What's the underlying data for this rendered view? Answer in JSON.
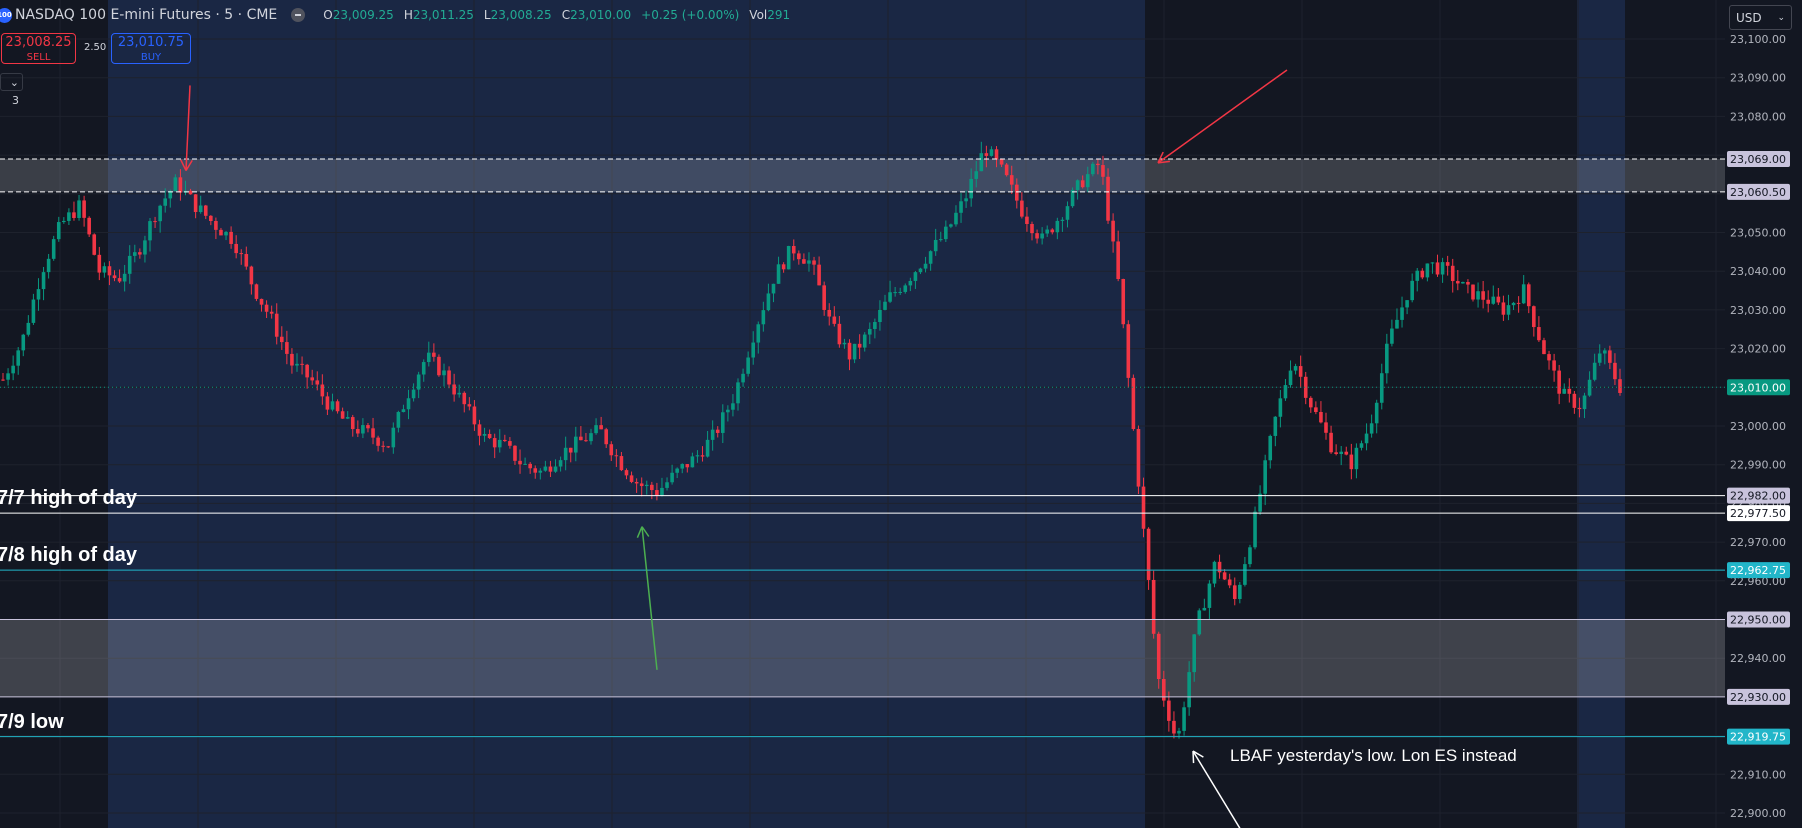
{
  "header": {
    "symbol_icon": "100",
    "title": "NASDAQ 100 E-mini Futures · 5 · CME",
    "ohlc": [
      {
        "k": "O",
        "v": "23,009.25"
      },
      {
        "k": "H",
        "v": "23,011.25"
      },
      {
        "k": "L",
        "v": "23,008.25"
      },
      {
        "k": "C",
        "v": "23,010.00"
      }
    ],
    "change": "+0.25 (+0.00%)",
    "vol_label": "Vol",
    "vol_value": "291"
  },
  "trade": {
    "sell_price": "23,008.25",
    "sell_label": "SELL",
    "spread": "2.50",
    "buy_price": "23,010.75",
    "buy_label": "BUY"
  },
  "indicators_toggle": "⌄ 3",
  "currency": "USD",
  "annotations": {
    "hod_77": "7/7 high of day",
    "hod_78": "7/8 high of day",
    "low_79": "7/9 low",
    "lbaf": "LBAF yesterday's low. Lon ES instead"
  },
  "chart_data": {
    "type": "candlestick",
    "price_axis_ticks": [
      23100,
      23090,
      23080,
      23070,
      23060,
      23050,
      23040,
      23030,
      23020,
      23010,
      23000,
      22990,
      22980,
      22970,
      22960,
      22950,
      22940,
      22930,
      22920,
      22910,
      22900
    ],
    "price_axis_labels": [
      "23,100.00",
      "23,090.00",
      "23,080.00",
      "23,070.00",
      "23,060.00",
      "23,050.00",
      "23,040.00",
      "23,030.00",
      "23,020.00",
      "23,010.00",
      "23,000.00",
      "22,990.00",
      "22,980.00",
      "22,970.00",
      "22,960.00",
      "22,950.00",
      "22,940.00",
      "22,930.00",
      "22,920.00",
      "22,910.00",
      "22,900.00"
    ],
    "ylim": [
      22896.5,
      23106.5
    ],
    "last_price": {
      "value": 23010.0,
      "label": "23,010.00",
      "color": "#089981"
    },
    "levels": [
      {
        "value": 23069.0,
        "label": "23,069.00",
        "style": "dashed",
        "color": "#ffffff",
        "badge": "#c8c3dc"
      },
      {
        "value": 23060.5,
        "label": "23,060.50",
        "style": "dashed",
        "color": "#ffffff",
        "badge": "#c8c3dc"
      },
      {
        "value": 22982.0,
        "label": "22,982.00",
        "style": "solid",
        "color": "#ffffff",
        "badge": "#c8c3dc"
      },
      {
        "value": 22977.5,
        "label": "22,977.50",
        "style": "solid",
        "color": "#ffffff",
        "badge": "#ffffff"
      },
      {
        "value": 22962.75,
        "label": "22,962.75",
        "style": "solid",
        "color": "#22b6c9",
        "badge": "#22b6c9"
      },
      {
        "value": 22950.0,
        "label": "22,950.00",
        "style": "solid",
        "color": "#c8c3dc",
        "badge": "#c8c3dc"
      },
      {
        "value": 22930.0,
        "label": "22,930.00",
        "style": "solid",
        "color": "#c8c3dc",
        "badge": "#c8c3dc"
      },
      {
        "value": 22919.75,
        "label": "22,919.75",
        "style": "solid",
        "color": "#22b6c9",
        "badge": "#22b6c9"
      }
    ],
    "zones": [
      {
        "top": 23069.0,
        "bottom": 23060.5,
        "color": "#ffffff",
        "opacity": 0.17
      },
      {
        "top": 22950.0,
        "bottom": 22930.0,
        "color": "#ffffff",
        "opacity": 0.19
      }
    ],
    "candle_series": [
      {
        "from": 23012,
        "path": [
          23022,
          23040,
          23052,
          23057,
          23040,
          23038,
          23045,
          23056,
          23063,
          23057,
          23052,
          23048,
          23036,
          23027,
          23016,
          23012,
          23005,
          23000,
          22998,
          22995,
          23008,
          23018,
          23013,
          23005,
          22997,
          22995,
          22990,
          22988,
          22993,
          22996,
          22999,
          22991,
          22985,
          22983,
          22988,
          22992,
          22998,
          23008,
          23024,
          23038,
          23046,
          23042,
          23026,
          23018,
          23024,
          23033,
          23038,
          23044,
          23050,
          23059,
          23072,
          23065,
          23055,
          23048,
          23055,
          23063,
          23068,
          23035,
          22985,
          22935,
          22918,
          22948,
          22965,
          22955,
          22975,
          23000,
          23018,
          23005,
          22995,
          22990,
          23000,
          23022,
          23035,
          23042,
          23040,
          23035,
          23033,
          23030,
          23035,
          23020,
          23008,
          23005,
          23020,
          23010
        ]
      }
    ],
    "arrows": [
      {
        "color": "#f23645",
        "from": [
          23088,
          "k1"
        ],
        "to": [
          23066,
          "k2"
        ]
      },
      {
        "color": "#f23645",
        "from": [
          23092,
          "k3"
        ],
        "to": [
          23068,
          "k4"
        ]
      },
      {
        "color": "#4caf50",
        "from": [
          22937,
          "k5"
        ],
        "to": [
          22974,
          "k6"
        ]
      },
      {
        "color": "#ffffff",
        "from": [
          22896,
          "k7"
        ],
        "to": [
          22916,
          "k8"
        ]
      }
    ],
    "colors": {
      "up": "#089981",
      "down": "#f23645",
      "background": "#131722",
      "session_band": "#1a2744",
      "grid": "#1e222d",
      "axis_text": "#b2b5be"
    }
  }
}
